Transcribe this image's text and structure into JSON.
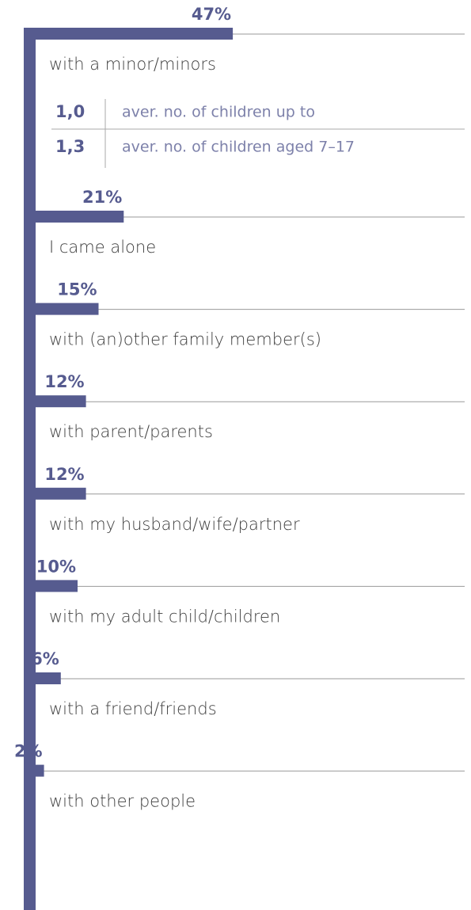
{
  "chart_data": {
    "type": "bar",
    "orientation": "horizontal",
    "color": "#565b8f",
    "categories": [
      "with a minor/minors",
      "I came alone",
      "with (an)other family member(s)",
      "with parent/parents",
      "with my husband/wife/partner",
      "with my adult child/children",
      "with a friend/friends",
      "with other people"
    ],
    "values": [
      47,
      21,
      15,
      12,
      12,
      10,
      6,
      2
    ],
    "value_labels": [
      "47%",
      "21%",
      "15%",
      "12%",
      "12%",
      "10%",
      "6%",
      "2%"
    ],
    "notes": [
      {
        "value": "1,0",
        "text": "aver. no. of children up to"
      },
      {
        "value": "1,3",
        "text": "aver. no. of children aged 7–17"
      }
    ]
  }
}
